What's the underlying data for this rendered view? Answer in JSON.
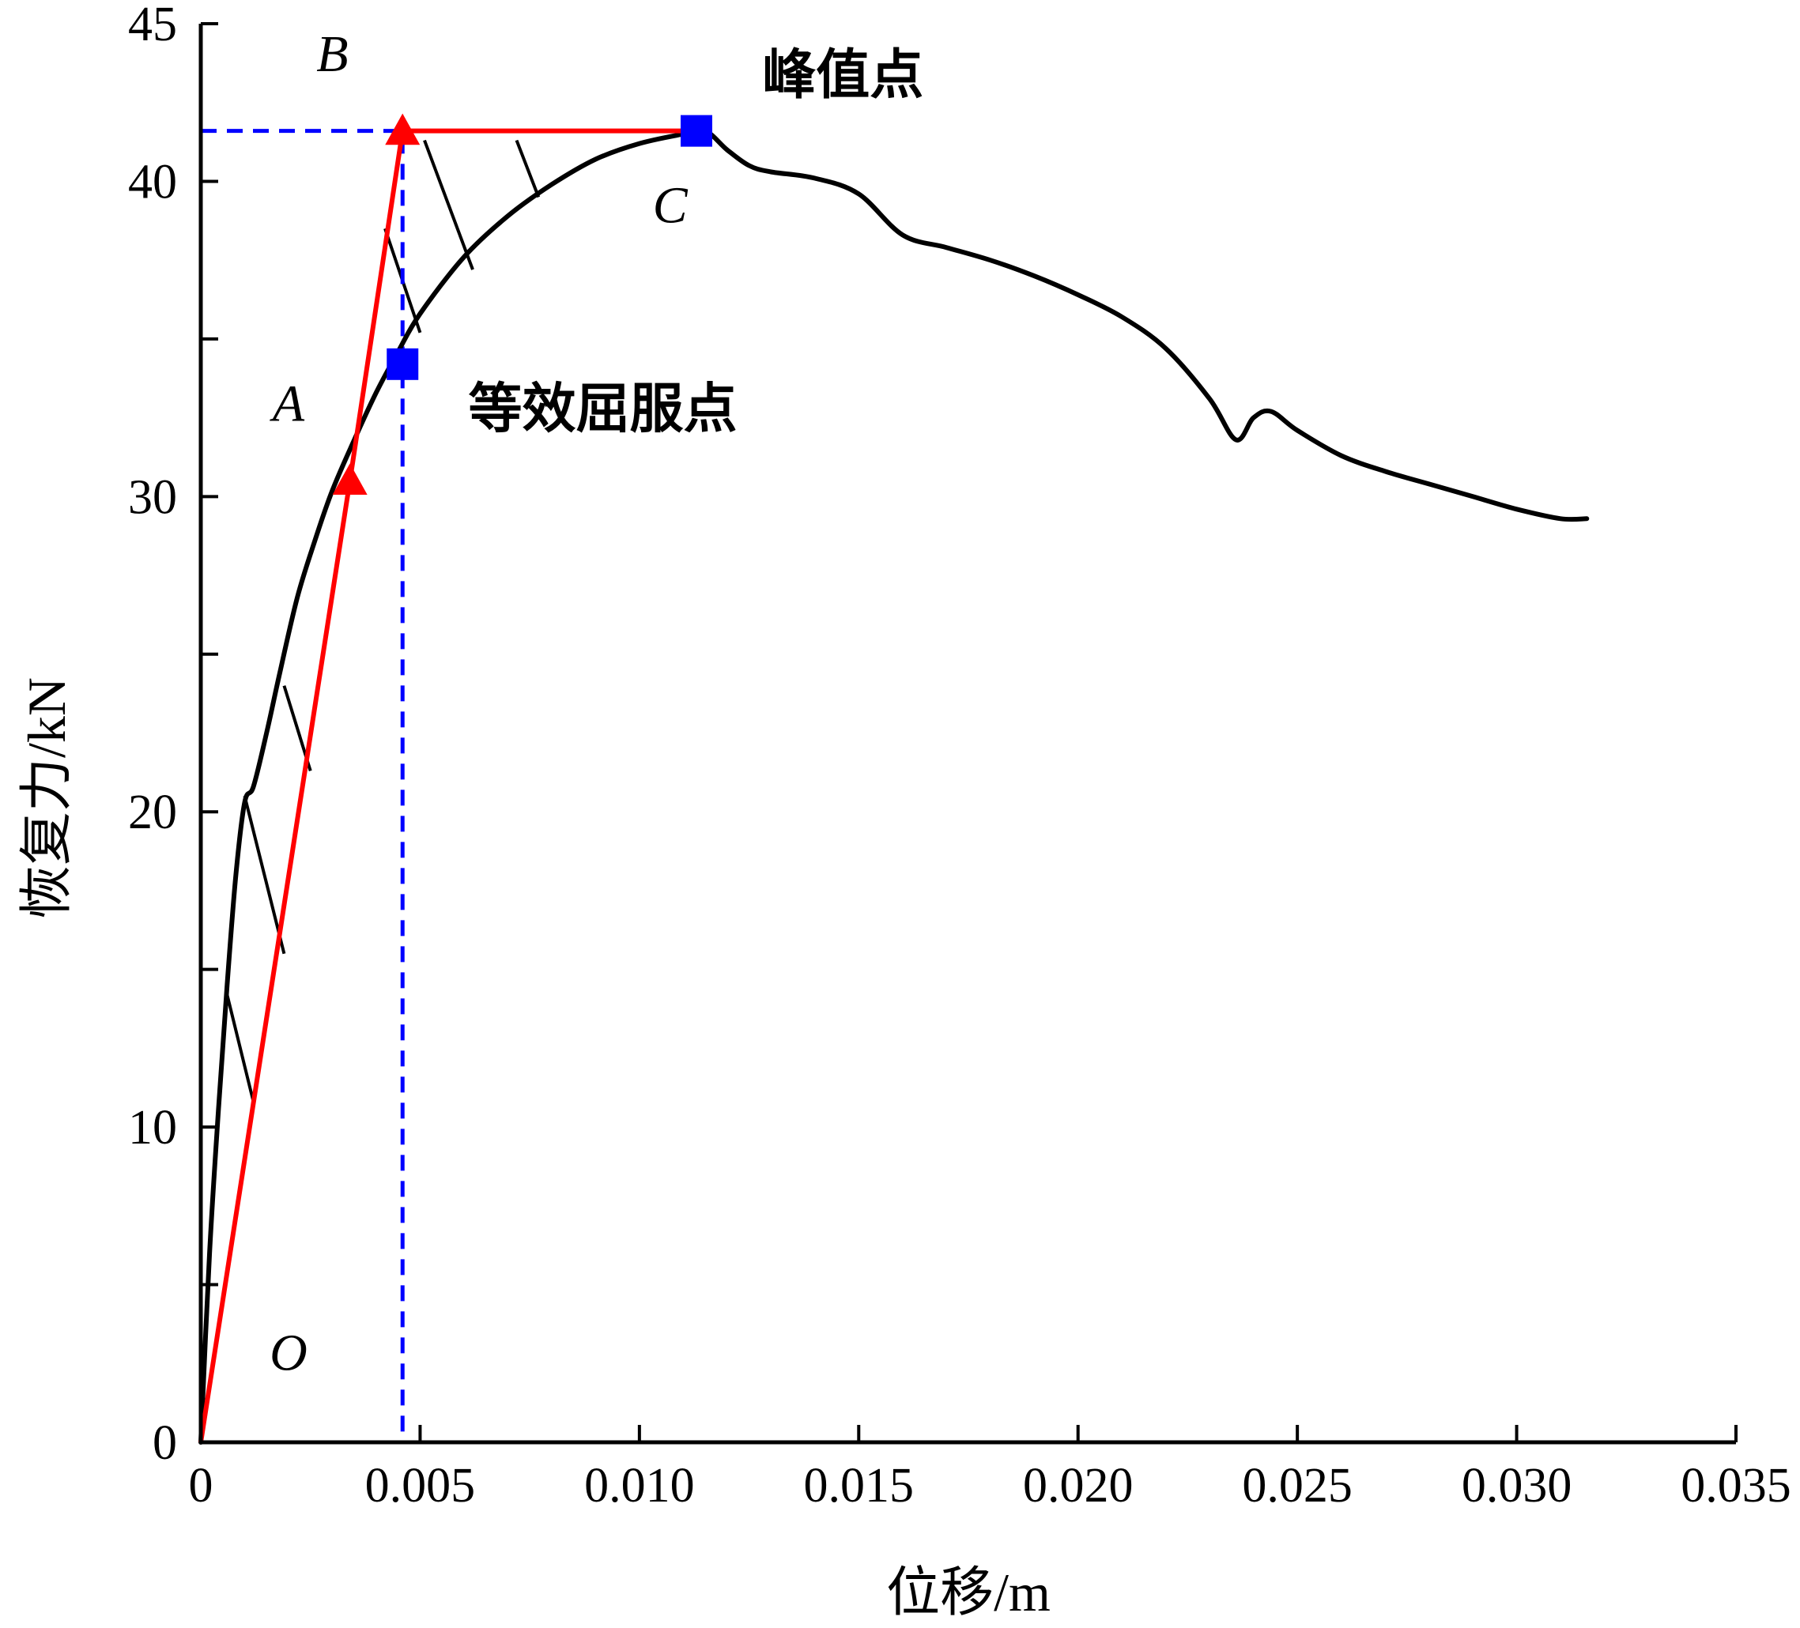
{
  "chart_data": {
    "type": "line",
    "title": "",
    "xlabel": "位移/m",
    "ylabel": "恢复力/kN",
    "xlim": [
      0,
      0.035
    ],
    "ylim": [
      0,
      45
    ],
    "x_ticks": [
      0,
      0.005,
      0.01,
      0.015,
      0.02,
      0.025,
      0.03,
      0.035
    ],
    "x_tick_labels": [
      "0",
      "0.005",
      "0.010",
      "0.015",
      "0.020",
      "0.025",
      "0.030",
      "0.035"
    ],
    "y_ticks": [
      0,
      5,
      10,
      15,
      20,
      25,
      30,
      35,
      40,
      45
    ],
    "y_tick_labels": [
      "0",
      "",
      "10",
      "",
      "20",
      "",
      "30",
      "",
      "40",
      "45"
    ],
    "grid": false,
    "legend": "none",
    "series": [
      {
        "color": "#000000",
        "style": "solid",
        "x": [
          0,
          0.0002,
          0.0004,
          0.0006,
          0.0008,
          0.001,
          0.0012,
          0.0015,
          0.0018,
          0.0022,
          0.0026,
          0.003,
          0.0035,
          0.004,
          0.0045,
          0.005,
          0.006,
          0.007,
          0.008,
          0.009,
          0.01,
          0.011,
          0.0115,
          0.012,
          0.0125,
          0.013,
          0.014,
          0.015,
          0.016,
          0.017,
          0.018,
          0.019,
          0.02,
          0.021,
          0.022,
          0.023,
          0.0236,
          0.024,
          0.0244,
          0.025,
          0.026,
          0.027,
          0.028,
          0.029,
          0.03,
          0.031,
          0.0316
        ],
        "y": [
          0,
          6,
          10.5,
          14.5,
          18,
          20.3,
          20.8,
          22.5,
          24.4,
          26.8,
          28.6,
          30.2,
          31.8,
          33.3,
          34.6,
          35.8,
          37.6,
          38.9,
          39.9,
          40.7,
          41.2,
          41.5,
          41.6,
          41.0,
          40.5,
          40.3,
          40.1,
          39.6,
          38.3,
          37.9,
          37.5,
          37.0,
          36.4,
          35.7,
          34.7,
          33.1,
          31.8,
          32.5,
          32.7,
          32.1,
          31.3,
          30.8,
          30.4,
          30.0,
          29.6,
          29.3,
          29.3
        ]
      },
      {
        "color": "#ff0000",
        "style": "solid",
        "x": [
          0,
          0.0034,
          0.0046,
          0.0113
        ],
        "y": [
          0,
          30.5,
          41.6,
          41.6
        ]
      },
      {
        "color": "#0000ff",
        "style": "dashed",
        "x": [
          0,
          0.0046,
          0.0046,
          0.0046
        ],
        "y": [
          41.6,
          41.6,
          34.2,
          0
        ]
      }
    ],
    "hatch_lines": [
      {
        "from": [
          0.0006,
          14.2
        ],
        "to": [
          0.0012,
          10.8
        ]
      },
      {
        "from": [
          0.001,
          20.5
        ],
        "to": [
          0.0019,
          15.5
        ]
      },
      {
        "from": [
          0.0019,
          24.0
        ],
        "to": [
          0.0025,
          21.3
        ]
      },
      {
        "from": [
          0.0042,
          38.5
        ],
        "to": [
          0.005,
          35.2
        ]
      },
      {
        "from": [
          0.0051,
          41.3
        ],
        "to": [
          0.0062,
          37.2
        ]
      },
      {
        "from": [
          0.0072,
          41.3
        ],
        "to": [
          0.0077,
          39.5
        ]
      }
    ],
    "markers": [
      {
        "x": 0.0034,
        "y": 30.5,
        "shape": "triangle",
        "color": "#ff0000"
      },
      {
        "x": 0.0046,
        "y": 41.6,
        "shape": "triangle",
        "color": "#ff0000"
      },
      {
        "x": 0.0046,
        "y": 34.2,
        "shape": "square",
        "color": "#0000ff"
      },
      {
        "x": 0.0113,
        "y": 41.6,
        "shape": "square",
        "color": "#0000ff"
      }
    ],
    "point_labels": [
      {
        "text": "O",
        "x": 0.002,
        "y": 2.3
      },
      {
        "text": "A",
        "x": 0.002,
        "y": 32.4
      },
      {
        "text": "B",
        "x": 0.003,
        "y": 43.5
      },
      {
        "text": "C",
        "x": 0.0107,
        "y": 38.7
      }
    ],
    "annotations": [
      {
        "text": "峰值点",
        "x": 0.0128,
        "y": 42.8
      },
      {
        "text": "等效屈服点",
        "x": 0.0061,
        "y": 32.2
      }
    ]
  }
}
